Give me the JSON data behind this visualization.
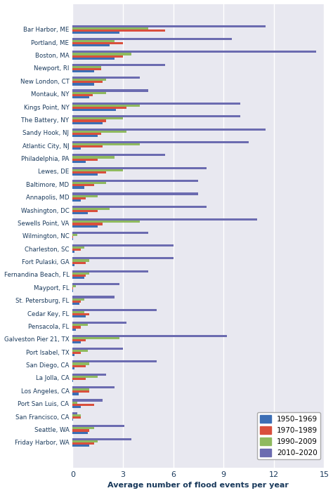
{
  "locations": [
    "Bar Harbor, ME",
    "Portland, ME",
    "Boston, MA",
    "Newport, RI",
    "New London, CT",
    "Montauk, NY",
    "Kings Point, NY",
    "The Battery, NY",
    "Sandy Hook, NJ",
    "Atlantic City, NJ",
    "Philadelphia, PA",
    "Lewes, DE",
    "Baltimore, MD",
    "Annapolis, MD",
    "Washington, DC",
    "Sewells Point, VA",
    "Wilmington, NC",
    "Charleston, SC",
    "Fort Pulaski, GA",
    "Fernandina Beach, FL",
    "Mayport, FL",
    "St. Petersburg, FL",
    "Cedar Key, FL",
    "Pensacola, FL",
    "Galveston Pier 21, TX",
    "Port Isabel, TX",
    "San Diego, CA",
    "La Jolla, CA",
    "Los Angeles, CA",
    "Port San Luis, CA",
    "San Francisco, CA",
    "Seattle, WA",
    "Friday Harbor, WA"
  ],
  "data": {
    "1950–1969": [
      2.8,
      2.2,
      2.5,
      1.3,
      1.3,
      1.0,
      2.6,
      1.8,
      1.5,
      0.5,
      0.8,
      1.5,
      0.7,
      0.5,
      0.9,
      1.5,
      0.05,
      0.1,
      0.1,
      0.7,
      0.05,
      0.4,
      0.8,
      0.2,
      0.5,
      0.1,
      0.1,
      0.05,
      0.35,
      0.5,
      0.05,
      0.9,
      1.0
    ],
    "1970–1989": [
      5.5,
      3.0,
      3.0,
      1.7,
      1.8,
      1.2,
      3.2,
      2.0,
      1.7,
      1.8,
      1.5,
      2.0,
      1.3,
      0.8,
      1.5,
      1.8,
      0.05,
      0.5,
      0.8,
      0.8,
      0.05,
      0.5,
      1.0,
      0.5,
      0.8,
      0.5,
      0.8,
      0.8,
      1.0,
      1.3,
      0.5,
      1.0,
      1.3
    ],
    "1990–2009": [
      4.5,
      2.5,
      3.5,
      1.7,
      2.0,
      2.0,
      4.0,
      3.0,
      3.2,
      4.0,
      2.5,
      3.0,
      2.0,
      1.5,
      2.2,
      4.0,
      0.3,
      0.7,
      1.0,
      1.0,
      0.2,
      0.7,
      0.7,
      0.9,
      2.8,
      0.9,
      1.0,
      1.5,
      1.0,
      0.3,
      0.5,
      1.3,
      1.5
    ],
    "2010–2020": [
      11.5,
      9.5,
      14.5,
      5.5,
      4.0,
      4.5,
      10.0,
      10.0,
      11.5,
      10.5,
      5.5,
      8.0,
      7.5,
      7.5,
      8.0,
      11.0,
      4.5,
      6.0,
      6.0,
      4.5,
      2.8,
      2.5,
      5.0,
      3.2,
      9.2,
      3.0,
      5.0,
      2.0,
      2.5,
      1.8,
      0.3,
      3.1,
      3.5
    ]
  },
  "colors": {
    "1950–1969": "#3c6eb5",
    "1970–1989": "#d94f3d",
    "1990–2009": "#8fba5f",
    "2010–2020": "#6b6bb0"
  },
  "xlabel": "Average number of flood events per year",
  "xlim": [
    0,
    15
  ],
  "xticks": [
    0,
    3,
    6,
    9,
    12,
    15
  ],
  "plot_bg": "#e8e8f0",
  "fig_bg": "#ffffff",
  "grid_color": "#ffffff",
  "label_color": "#1a3a5c"
}
